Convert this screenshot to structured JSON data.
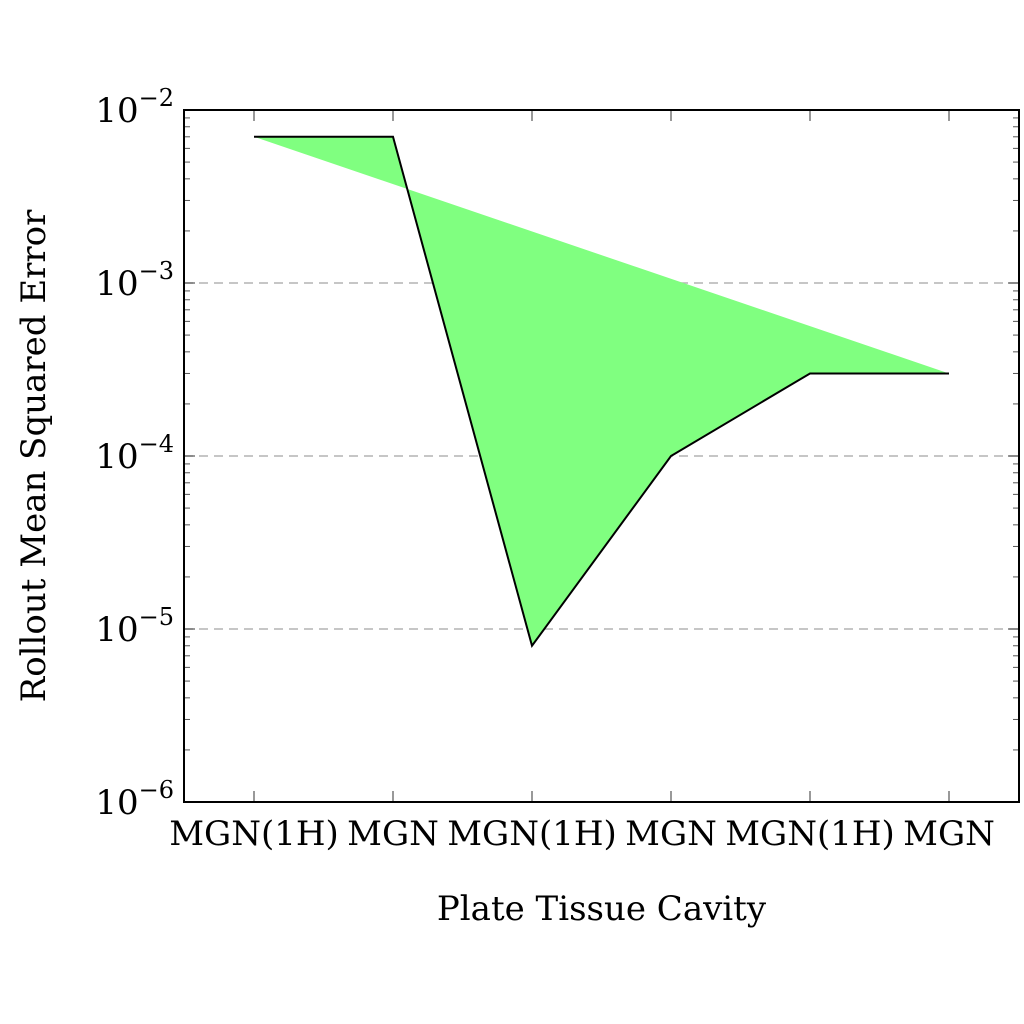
{
  "chart_data": {
    "type": "area",
    "title": "",
    "xlabel": "Plate Tissue Cavity",
    "ylabel": "Rollout Mean Squared Error",
    "categories": [
      "MGN(1H)",
      "MGN",
      "MGN(1H)",
      "MGN",
      "MGN(1H)",
      "MGN"
    ],
    "yscale": "log",
    "ylim": [
      1e-06,
      0.01
    ],
    "yticks": [
      {
        "base": "10",
        "exp": "−6"
      },
      {
        "base": "10",
        "exp": "−5"
      },
      {
        "base": "10",
        "exp": "−4"
      },
      {
        "base": "10",
        "exp": "−3"
      },
      {
        "base": "10",
        "exp": "−2"
      }
    ],
    "grid": "horizontal dashed at major ticks",
    "series": [
      {
        "values": [
          0.007,
          0.007,
          8e-06,
          0.0001,
          0.0003,
          0.0003
        ]
      }
    ],
    "fill_color": "#80ff80",
    "line_color": "#000000"
  }
}
